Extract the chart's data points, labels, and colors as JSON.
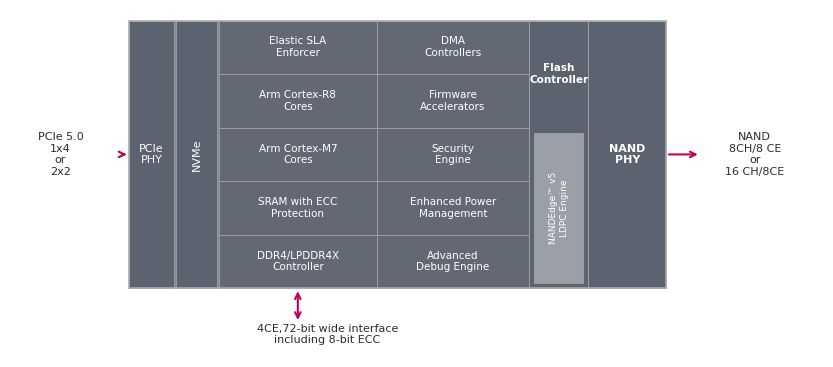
{
  "bg_color": "#ffffff",
  "dark_gray": "#5c6370",
  "medium_gray": "#626874",
  "nandedge_fill": "#9a9fa8",
  "arrow_color": "#c0005a",
  "text_white": "#ffffff",
  "text_dark": "#2c2c2c",
  "figsize": [
    8.33,
    3.67
  ],
  "dpi": 100,
  "left_label": "PCIe 5.0\n1x4\nor\n2x2",
  "right_label": "NAND\n8CH/8 CE\nor\n16 CH/8CE",
  "bottom_label": "4CE,72-bit wide interface\nincluding 8-bit ECC",
  "core_rows": [
    "Elastic SLA\nEnforcer",
    "Arm Cortex-R8\nCores",
    "Arm Cortex-M7\nCores",
    "SRAM with ECC\nProtection",
    "DDR4/LPDDR4X\nController"
  ],
  "right_rows": [
    "DMA\nControllers",
    "Firmware\nAccelerators",
    "Security\nEngine",
    "Enhanced Power\nManagement",
    "Advanced\nDebug Engine"
  ],
  "flash_label": "Flash\nController",
  "nandedge_label": "NANDEdge™ v5\nLDPC Engine",
  "pcie_phy_label": "PCIe\nPHY",
  "nvme_label": "NVMe",
  "nand_phy_label": "NAND\nPHY"
}
